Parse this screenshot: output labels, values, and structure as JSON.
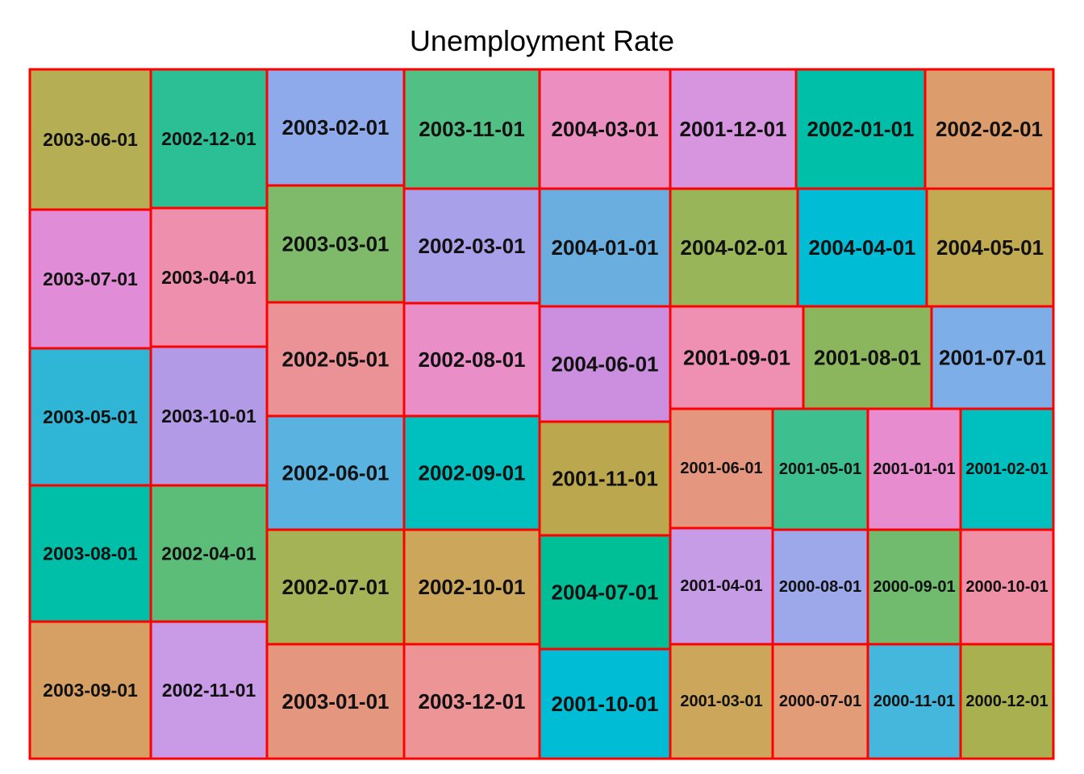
{
  "chart_data": {
    "type": "treemap",
    "title": "Unemployment Rate",
    "border_color": "#ff0000",
    "columns": [
      {
        "column": 1,
        "tiles": [
          {
            "label": "2003-06-01",
            "color": "#b5ae55"
          },
          {
            "label": "2003-07-01",
            "color": "#e08cd6"
          },
          {
            "label": "2003-05-01",
            "color": "#2fb6d6"
          },
          {
            "label": "2003-08-01",
            "color": "#00bfa8"
          },
          {
            "label": "2003-09-01",
            "color": "#d6a065"
          }
        ]
      },
      {
        "column": 2,
        "tiles": [
          {
            "label": "2002-12-01",
            "color": "#2cbf95"
          },
          {
            "label": "2003-04-01",
            "color": "#ef8fae"
          },
          {
            "label": "2003-10-01",
            "color": "#b39ae6"
          },
          {
            "label": "2002-04-01",
            "color": "#5cbd78"
          },
          {
            "label": "2002-11-01",
            "color": "#c99ae6"
          }
        ]
      },
      {
        "column": 3,
        "tiles": [
          {
            "label": "2003-02-01",
            "color": "#8eaaea"
          },
          {
            "label": "2003-03-01",
            "color": "#7fba6b"
          },
          {
            "label": "2002-05-01",
            "color": "#ea9296"
          },
          {
            "label": "2002-06-01",
            "color": "#5ab2e0"
          },
          {
            "label": "2002-07-01",
            "color": "#a3b355"
          },
          {
            "label": "2003-01-01",
            "color": "#e5967e"
          }
        ]
      },
      {
        "column": 4,
        "tiles": [
          {
            "label": "2003-11-01",
            "color": "#52bf85"
          },
          {
            "label": "2002-03-01",
            "color": "#a9a0ea"
          },
          {
            "label": "2002-08-01",
            "color": "#ea8ec8"
          },
          {
            "label": "2002-09-01",
            "color": "#00bfbf"
          },
          {
            "label": "2002-10-01",
            "color": "#cca65a"
          },
          {
            "label": "2003-12-01",
            "color": "#ed9496"
          }
        ]
      },
      {
        "column": 5,
        "tiles": [
          {
            "label": "2004-03-01",
            "color": "#ed8ec0"
          },
          {
            "label": "2004-01-01",
            "color": "#6aaee0"
          },
          {
            "label": "2004-06-01",
            "color": "#cc8fdf"
          },
          {
            "label": "2001-11-01",
            "color": "#bba74e"
          },
          {
            "label": "2004-07-01",
            "color": "#00bf96"
          },
          {
            "label": "2001-10-01",
            "color": "#00bcd4"
          }
        ]
      },
      {
        "column": 6,
        "tiles": [
          {
            "label": "2001-12-01",
            "color": "#d794df"
          },
          {
            "label": "2004-02-01",
            "color": "#99b55a"
          },
          {
            "label": "2001-09-01",
            "color": "#ef8fb2"
          },
          {
            "label": "2001-06-01",
            "color": "#e5967e"
          },
          {
            "label": "2001-04-01",
            "color": "#c69ce6"
          },
          {
            "label": "2001-03-01",
            "color": "#cca65a"
          }
        ]
      },
      {
        "column": 7,
        "tiles": [
          {
            "label": "2002-01-01",
            "color": "#00bfa8"
          },
          {
            "label": "2004-04-01",
            "color": "#00bcd4"
          },
          {
            "label": "2001-08-01",
            "color": "#8cb65e"
          },
          {
            "label": "2001-05-01",
            "color": "#3dbf90"
          },
          {
            "label": "2000-08-01",
            "color": "#9da8ea"
          },
          {
            "label": "2000-07-01",
            "color": "#e29c78"
          }
        ]
      },
      {
        "column": 8,
        "tiles": [
          {
            "label": "2002-02-01",
            "color": "#dd9c6c"
          },
          {
            "label": "2004-05-01",
            "color": "#c2aa52"
          },
          {
            "label": "2001-07-01",
            "color": "#7eaee8"
          },
          {
            "label": "2001-01-01",
            "color": "#e88cd0"
          },
          {
            "label": "2000-09-01",
            "color": "#70bb6d"
          },
          {
            "label": "2000-11-01",
            "color": "#45b6dc"
          }
        ]
      },
      {
        "column": 9,
        "tiles": [
          {
            "label": "2001-02-01",
            "color": "#00bfbf"
          },
          {
            "label": "2000-10-01",
            "color": "#ef90a6"
          },
          {
            "label": "2000-12-01",
            "color": "#a8b050"
          }
        ]
      }
    ]
  }
}
